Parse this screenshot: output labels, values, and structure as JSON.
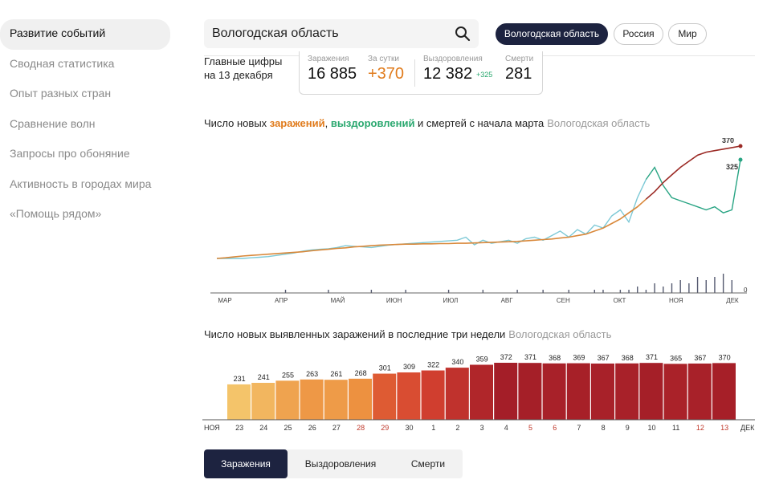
{
  "sidebar": {
    "items": [
      {
        "label": "Развитие событий",
        "active": true
      },
      {
        "label": "Сводная статистика"
      },
      {
        "label": "Опыт разных стран"
      },
      {
        "label": "Сравнение волн"
      },
      {
        "label": "Запросы про обоняние"
      },
      {
        "label": "Активность в городах мира"
      },
      {
        "label": "«Помощь рядом»"
      }
    ]
  },
  "search": {
    "value": "Вологодская область"
  },
  "region_chips": [
    "Вологодская область",
    "Россия",
    "Мир"
  ],
  "summary": {
    "title_line1": "Главные цифры",
    "title_line2": "на 13 декабря",
    "infected_label": "Заражения",
    "infected_value": "16 885",
    "daily_label": "За сутки",
    "daily_value": "+370",
    "recovered_label": "Выздоровления",
    "recovered_value": "12 382",
    "recovered_daily": "+325",
    "deaths_label": "Смерти",
    "deaths_value": "281"
  },
  "chart1_title": {
    "part1": "Число новых ",
    "infections": "заражений",
    "sep": ", ",
    "recoveries": "выздоровлений",
    "part2": " и смертей с начала марта",
    "region": "Вологодская область"
  },
  "chart2_title": {
    "text": "Число новых выявленных заражений в последние три недели",
    "region": "Вологодская область"
  },
  "chart_data": [
    {
      "type": "line",
      "title": "Число новых заражений, выздоровлений и смертей с начала марта",
      "x_tick_labels": [
        "МАР",
        "АПР",
        "МАЙ",
        "ИЮН",
        "ИЮЛ",
        "АВГ",
        "СЕН",
        "ОКТ",
        "НОЯ",
        "ДЕК"
      ],
      "last_values": {
        "infections": 370,
        "recoveries": 325,
        "deaths": 0
      },
      "colors": {
        "infections": "#d9883a",
        "infections_recent": "#9b2a25",
        "recoveries": "#7dc9d6",
        "recoveries_recent": "#28a483",
        "deaths": "#555a70"
      },
      "series": [
        {
          "name": "Заражения",
          "values": [
            0,
            2,
            5,
            8,
            10,
            12,
            14,
            16,
            18,
            20,
            22,
            25,
            28,
            30,
            33,
            35,
            38,
            40,
            42,
            44,
            45,
            46,
            47,
            47,
            48,
            48,
            49,
            49,
            50,
            50,
            51,
            52,
            53,
            54,
            55,
            56,
            58,
            60,
            62,
            64,
            67,
            70,
            75,
            80,
            90,
            100,
            115,
            130,
            150,
            170,
            195,
            220,
            250,
            275,
            300,
            320,
            340,
            350,
            355,
            360,
            365,
            370
          ]
        },
        {
          "name": "Выздоровления",
          "values": [
            0,
            0,
            0,
            0,
            2,
            4,
            6,
            10,
            14,
            18,
            24,
            28,
            30,
            32,
            36,
            42,
            40,
            38,
            36,
            40,
            44,
            46,
            48,
            50,
            52,
            54,
            56,
            58,
            60,
            70,
            45,
            60,
            50,
            55,
            60,
            50,
            65,
            70,
            60,
            75,
            90,
            70,
            95,
            80,
            110,
            100,
            140,
            160,
            120,
            200,
            260,
            300,
            240,
            200,
            190,
            180,
            170,
            160,
            170,
            150,
            160,
            325
          ]
        },
        {
          "name": "Смерти",
          "values": [
            0,
            0,
            0,
            0,
            0,
            0,
            0,
            0,
            1,
            0,
            0,
            0,
            0,
            1,
            0,
            0,
            0,
            0,
            1,
            0,
            0,
            0,
            1,
            0,
            0,
            0,
            0,
            1,
            0,
            0,
            0,
            1,
            0,
            0,
            0,
            1,
            0,
            0,
            1,
            0,
            0,
            1,
            0,
            0,
            1,
            1,
            0,
            1,
            1,
            2,
            1,
            3,
            2,
            3,
            4,
            3,
            5,
            4,
            5,
            6,
            4,
            0
          ]
        }
      ]
    },
    {
      "type": "bar",
      "title": "Число новых выявленных заражений в последние три недели",
      "categories": [
        "23",
        "24",
        "25",
        "26",
        "27",
        "28",
        "29",
        "30",
        "1",
        "2",
        "3",
        "4",
        "5",
        "6",
        "7",
        "8",
        "9",
        "10",
        "11",
        "12",
        "13"
      ],
      "weekend_indices": [
        5,
        6,
        12,
        13,
        19,
        20
      ],
      "values": [
        231,
        241,
        255,
        263,
        261,
        268,
        301,
        309,
        322,
        340,
        359,
        372,
        371,
        368,
        369,
        367,
        368,
        371,
        365,
        367,
        370
      ],
      "edge_labels": [
        "НОЯ",
        "ДЕК"
      ],
      "ylim": [
        0,
        372
      ]
    }
  ],
  "tabs": [
    "Заражения",
    "Выздоровления",
    "Смерти"
  ]
}
